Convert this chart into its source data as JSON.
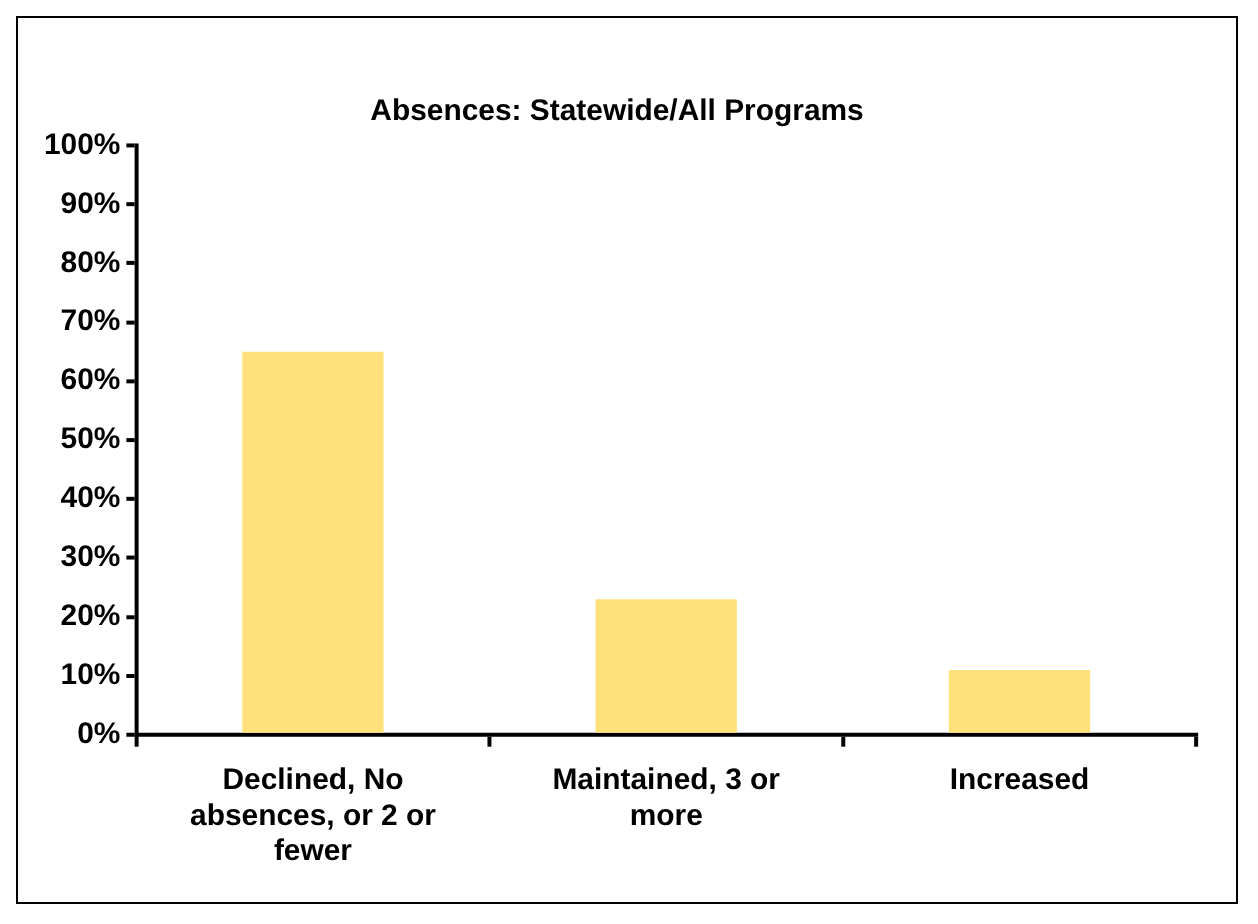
{
  "chart_data": {
    "type": "bar",
    "title": "Absences: Statewide/All Programs",
    "categories": [
      "Declined, No absences, or 2 or fewer",
      "Maintained, 3 or more",
      "Increased"
    ],
    "values": [
      65,
      23,
      11
    ],
    "color": "#ffe07a",
    "ylim": [
      0,
      100
    ],
    "yticks": [
      {
        "value": 0,
        "label": "0%"
      },
      {
        "value": 10,
        "label": "10%"
      },
      {
        "value": 20,
        "label": "20%"
      },
      {
        "value": 30,
        "label": "30%"
      },
      {
        "value": 40,
        "label": "40%"
      },
      {
        "value": 50,
        "label": "50%"
      },
      {
        "value": 60,
        "label": "60%"
      },
      {
        "value": 70,
        "label": "70%"
      },
      {
        "value": 80,
        "label": "80%"
      },
      {
        "value": 90,
        "label": "90%"
      },
      {
        "value": 100,
        "label": "100%"
      }
    ],
    "grid": false,
    "legend": false
  }
}
